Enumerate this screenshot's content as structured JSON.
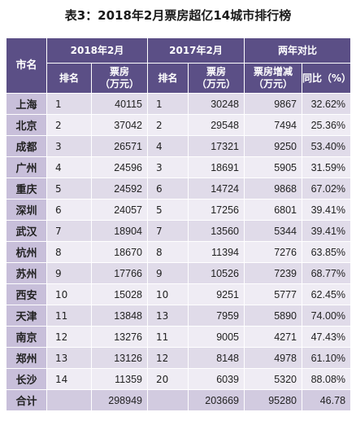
{
  "title": "表3：2018年2月票房超亿14城市排行榜",
  "headers": {
    "city": "市名",
    "feb2018": "2018年2月",
    "feb2017": "2017年2月",
    "comparison": "两年对比",
    "rank": "排名",
    "boxoffice": "票房\n（万元）",
    "increase": "票房增减\n（万元）",
    "yoy": "同比（%）"
  },
  "rows": [
    {
      "city": "上海",
      "rank18": "1",
      "box18": "40115",
      "rank17": "1",
      "box17": "30248",
      "diff": "9867",
      "yoy": "32.62%"
    },
    {
      "city": "北京",
      "rank18": "2",
      "box18": "37042",
      "rank17": "2",
      "box17": "29548",
      "diff": "7494",
      "yoy": "25.36%"
    },
    {
      "city": "成都",
      "rank18": "3",
      "box18": "26571",
      "rank17": "4",
      "box17": "17321",
      "diff": "9250",
      "yoy": "53.40%"
    },
    {
      "city": "广州",
      "rank18": "4",
      "box18": "24596",
      "rank17": "3",
      "box17": "18691",
      "diff": "5905",
      "yoy": "31.59%"
    },
    {
      "city": "重庆",
      "rank18": "5",
      "box18": "24592",
      "rank17": "6",
      "box17": "14724",
      "diff": "9868",
      "yoy": "67.02%"
    },
    {
      "city": "深圳",
      "rank18": "6",
      "box18": "24057",
      "rank17": "5",
      "box17": "17256",
      "diff": "6801",
      "yoy": "39.41%"
    },
    {
      "city": "武汉",
      "rank18": "7",
      "box18": "18904",
      "rank17": "7",
      "box17": "13560",
      "diff": "5344",
      "yoy": "39.41%"
    },
    {
      "city": "杭州",
      "rank18": "8",
      "box18": "18670",
      "rank17": "8",
      "box17": "11394",
      "diff": "7276",
      "yoy": "63.85%"
    },
    {
      "city": "苏州",
      "rank18": "9",
      "box18": "17766",
      "rank17": "9",
      "box17": "10526",
      "diff": "7239",
      "yoy": "68.77%"
    },
    {
      "city": "西安",
      "rank18": "10",
      "box18": "15028",
      "rank17": "10",
      "box17": "9251",
      "diff": "5777",
      "yoy": "62.45%"
    },
    {
      "city": "天津",
      "rank18": "11",
      "box18": "13848",
      "rank17": "13",
      "box17": "7959",
      "diff": "5890",
      "yoy": "74.00%"
    },
    {
      "city": "南京",
      "rank18": "12",
      "box18": "13276",
      "rank17": "11",
      "box17": "9005",
      "diff": "4271",
      "yoy": "47.43%"
    },
    {
      "city": "郑州",
      "rank18": "13",
      "box18": "13126",
      "rank17": "12",
      "box17": "8148",
      "diff": "4978",
      "yoy": "61.10%"
    },
    {
      "city": "长沙",
      "rank18": "14",
      "box18": "11359",
      "rank17": "20",
      "box17": "6039",
      "diff": "5320",
      "yoy": "88.08%"
    }
  ],
  "total": {
    "label": "合计",
    "box18": "298949",
    "box17": "203669",
    "diff": "95280",
    "yoy": "46.78"
  },
  "colors": {
    "header": "#5b4f86",
    "city_cell": "#c8bfda",
    "row_odd": "#e0dbe9",
    "row_even": "#efecf4"
  }
}
